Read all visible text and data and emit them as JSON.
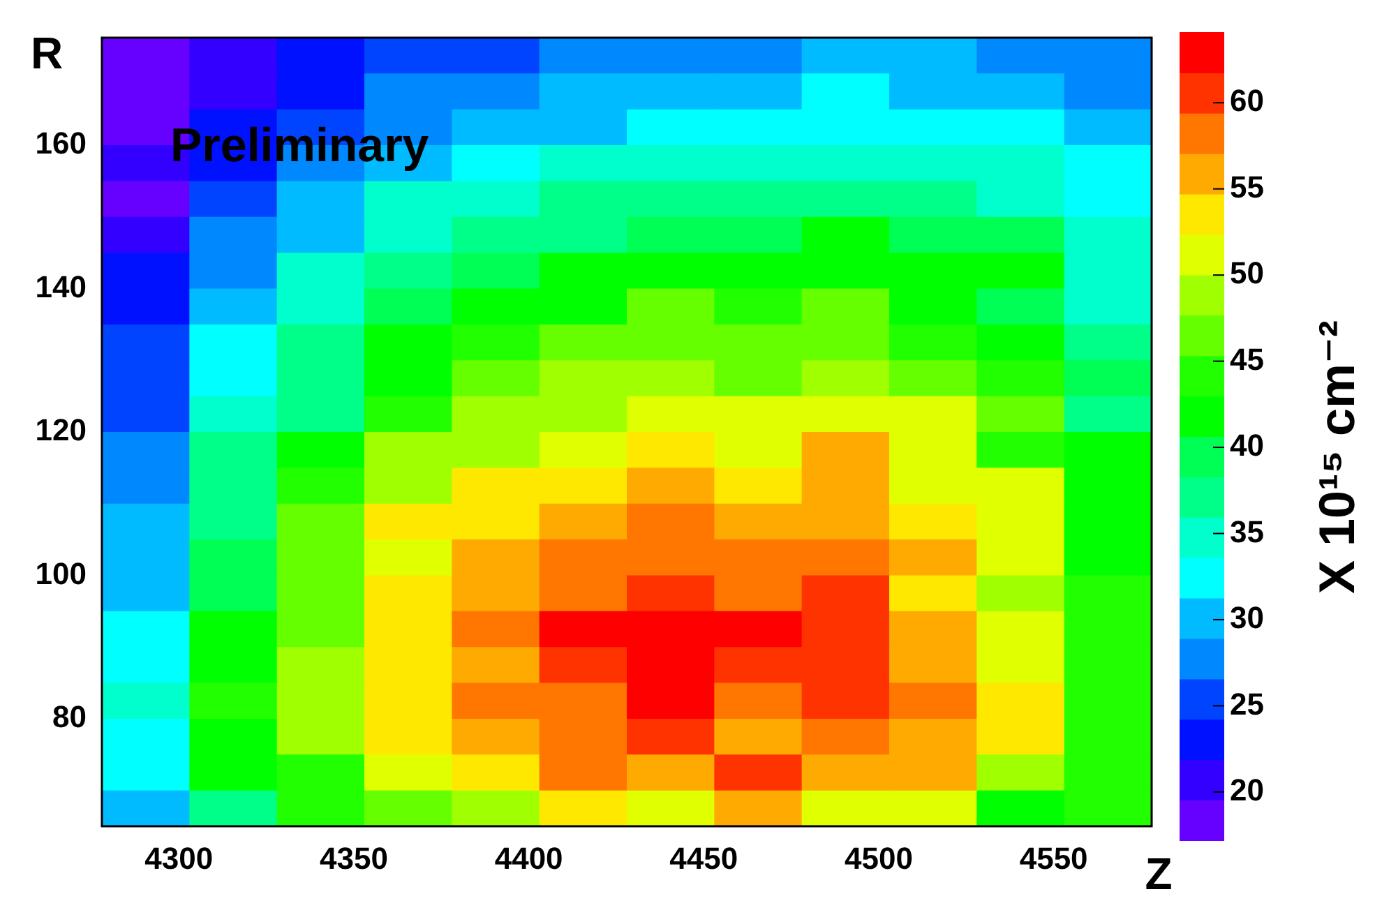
{
  "chart_data": {
    "type": "heatmap",
    "xlabel": "Z",
    "ylabel": "R",
    "clabel": "X 10¹⁵ cm⁻²",
    "annotations": [
      "Preliminary"
    ],
    "xlim": [
      4278,
      4578
    ],
    "xticks": [
      4300,
      4350,
      4400,
      4450,
      4500,
      4550
    ],
    "ylim": [
      65,
      175
    ],
    "yticks": [
      80,
      100,
      120,
      140,
      160
    ],
    "clim": [
      17.2,
      64.1
    ],
    "cticks": [
      20,
      25,
      30,
      35,
      40,
      45,
      50,
      55,
      60
    ],
    "cells": [
      [
        18,
        21,
        23,
        25,
        25,
        28,
        28,
        28,
        30,
        30,
        28,
        28
      ],
      [
        18,
        21,
        23,
        28,
        28,
        30,
        30,
        30,
        32,
        30,
        30,
        28
      ],
      [
        18,
        23,
        25,
        28,
        30,
        30,
        32,
        32,
        32,
        32,
        32,
        30
      ],
      [
        21,
        23,
        28,
        30,
        32,
        35,
        35,
        35,
        35,
        35,
        35,
        32
      ],
      [
        18,
        25,
        30,
        35,
        35,
        37,
        37,
        37,
        37,
        37,
        35,
        32
      ],
      [
        21,
        28,
        30,
        35,
        37,
        37,
        40,
        40,
        42,
        40,
        40,
        35
      ],
      [
        23,
        28,
        35,
        37,
        40,
        42,
        42,
        42,
        42,
        42,
        42,
        35
      ],
      [
        23,
        30,
        35,
        40,
        42,
        42,
        47,
        44,
        47,
        42,
        40,
        35
      ],
      [
        25,
        32,
        37,
        42,
        44,
        47,
        47,
        47,
        47,
        44,
        42,
        37
      ],
      [
        25,
        32,
        37,
        42,
        47,
        49,
        49,
        47,
        49,
        47,
        44,
        40
      ],
      [
        25,
        35,
        37,
        44,
        49,
        49,
        51,
        51,
        51,
        51,
        47,
        37
      ],
      [
        28,
        37,
        42,
        49,
        49,
        51,
        54,
        51,
        56,
        51,
        44,
        42
      ],
      [
        28,
        37,
        44,
        49,
        54,
        54,
        56,
        54,
        56,
        51,
        51,
        42
      ],
      [
        30,
        37,
        47,
        54,
        54,
        56,
        58,
        56,
        56,
        54,
        51,
        42
      ],
      [
        30,
        40,
        47,
        51,
        56,
        58,
        58,
        58,
        58,
        56,
        51,
        42
      ],
      [
        30,
        40,
        47,
        54,
        56,
        58,
        61,
        58,
        61,
        54,
        49,
        44
      ],
      [
        32,
        42,
        47,
        54,
        58,
        63,
        63,
        63,
        61,
        56,
        51,
        44
      ],
      [
        32,
        42,
        49,
        54,
        56,
        61,
        63,
        61,
        61,
        56,
        51,
        44
      ],
      [
        35,
        44,
        49,
        54,
        58,
        58,
        63,
        58,
        61,
        58,
        54,
        44
      ],
      [
        32,
        42,
        49,
        54,
        56,
        58,
        61,
        56,
        58,
        56,
        54,
        44
      ],
      [
        32,
        42,
        44,
        51,
        54,
        58,
        56,
        61,
        56,
        56,
        49,
        44
      ],
      [
        30,
        37,
        44,
        47,
        49,
        54,
        51,
        56,
        51,
        51,
        42,
        44
      ]
    ]
  }
}
